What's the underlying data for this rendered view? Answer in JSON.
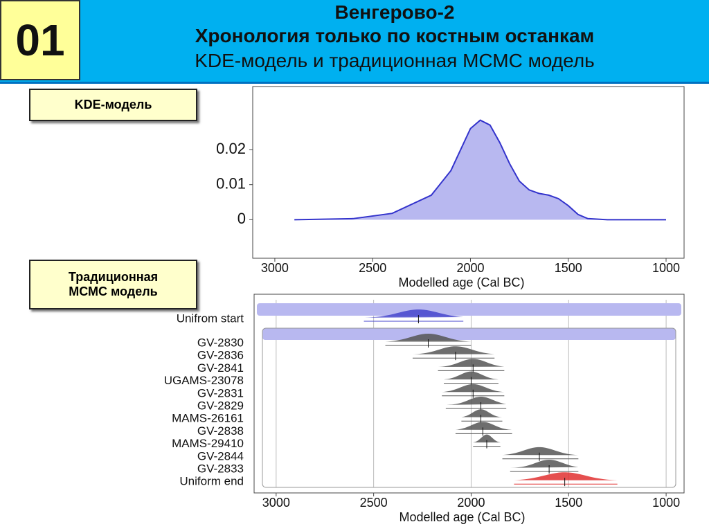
{
  "header": {
    "number": "01",
    "title": "Венгерово-2",
    "subtitle": "Хронология только по костным останкам",
    "subtitle2": "KDE-модель и традиционная МСМС модель"
  },
  "labels": [
    "KDE-модель",
    "Традиционная\nМСМС модель"
  ],
  "chart_data": [
    {
      "type": "line",
      "x_label": "Modelled age (Cal BC)",
      "x": [
        2900,
        2600,
        2400,
        2200,
        2100,
        2050,
        2000,
        1950,
        1900,
        1850,
        1800,
        1750,
        1700,
        1650,
        1600,
        1550,
        1500,
        1450,
        1400,
        1300,
        1000
      ],
      "series": [
        {
          "color": "#3333cc",
          "fill": "#b8b8f0",
          "values": [
            0,
            0.0003,
            0.0018,
            0.007,
            0.014,
            0.02,
            0.026,
            0.0284,
            0.027,
            0.022,
            0.016,
            0.011,
            0.0085,
            0.0075,
            0.007,
            0.006,
            0.004,
            0.0015,
            0.0003,
            0,
            0
          ]
        }
      ],
      "xlim": [
        3113,
        908
      ],
      "xticks": [
        3000,
        2500,
        2000,
        1500,
        1000
      ],
      "ylim": [
        -0.011,
        0.038
      ],
      "yticks": [
        0,
        0.01,
        0.02
      ],
      "grid": false
    },
    {
      "type": "range",
      "x_label": "Modelled age (Cal BC)",
      "categories": [
        "Unifrom start",
        "GV-2830",
        "GV-2836",
        "GV-2841",
        "UGAMS-23078",
        "GV-2831",
        "GV-2829",
        "MAMS-26161",
        "GV-2838",
        "MAMS-29410",
        "GV-2844",
        "GV-2833",
        "Uniform end"
      ],
      "median": [
        2270,
        2220,
        2080,
        1990,
        2000,
        1990,
        1950,
        1950,
        1940,
        1920,
        1650,
        1600,
        1520
      ],
      "from": [
        2550,
        2440,
        2300,
        2170,
        2140,
        2150,
        2130,
        2050,
        2080,
        1990,
        1840,
        1800,
        1780
      ],
      "to": [
        2040,
        2000,
        1880,
        1830,
        1860,
        1830,
        1820,
        1840,
        1790,
        1850,
        1450,
        1450,
        1250
      ],
      "colors": [
        "#4444cc",
        "#555555",
        "#555555",
        "#555555",
        "#555555",
        "#555555",
        "#555555",
        "#555555",
        "#555555",
        "#555555",
        "#555555",
        "#555555",
        "#e03030"
      ],
      "xlim": [
        3113,
        908
      ],
      "xticks": [
        3000,
        2500,
        2000,
        1500,
        1000
      ],
      "grid": true
    }
  ]
}
